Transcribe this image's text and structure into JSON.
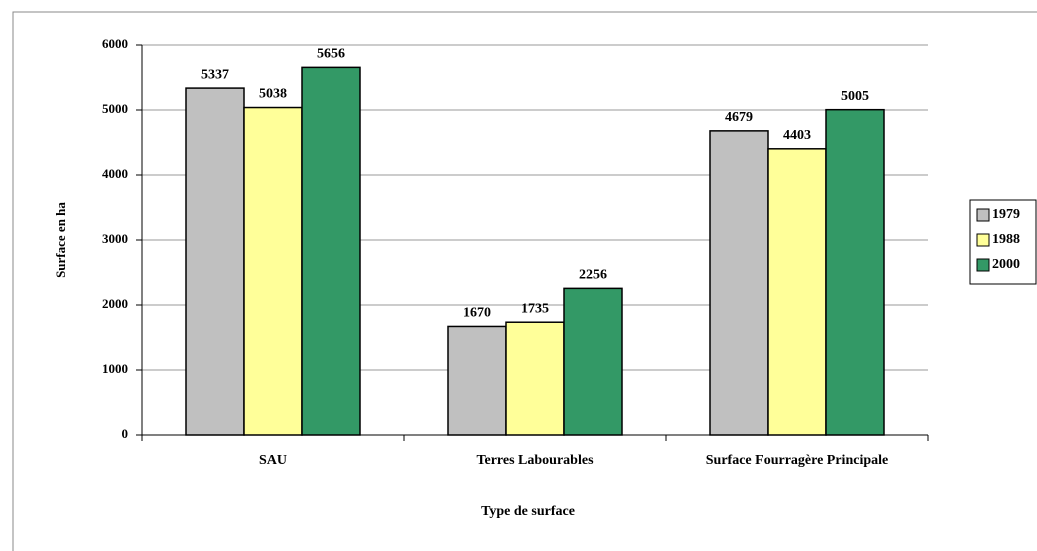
{
  "chart_data": {
    "type": "bar",
    "x_label": "Type de surface",
    "y_label": "Surface en ha",
    "categories": [
      "SAU",
      "Terres Labourables",
      "Surface Fourragère Principale"
    ],
    "series": [
      {
        "name": "1979",
        "color": "#c0c0c0",
        "values": [
          5337,
          1670,
          4679
        ]
      },
      {
        "name": "1988",
        "color": "#ffff99",
        "values": [
          5038,
          1735,
          4403
        ]
      },
      {
        "name": "2000",
        "color": "#339966",
        "values": [
          5656,
          2256,
          5005
        ]
      }
    ],
    "ylim": [
      0,
      6000
    ],
    "yticks": [
      0,
      1000,
      2000,
      3000,
      4000,
      5000,
      6000
    ],
    "grid": true,
    "legend": "right"
  }
}
